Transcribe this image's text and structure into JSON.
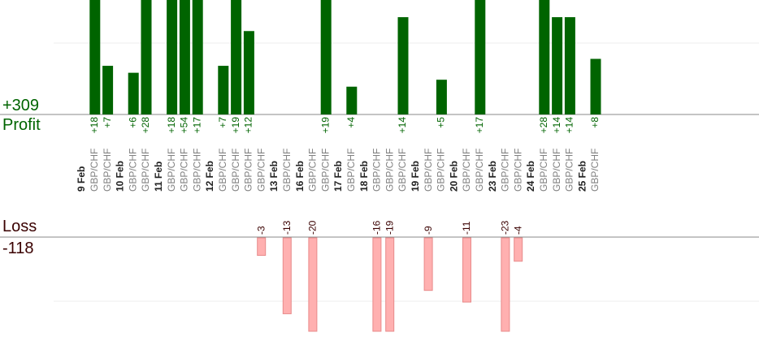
{
  "summary": {
    "profit_total": "+309",
    "profit_label": "Profit",
    "loss_label": "Loss",
    "loss_total": "-118"
  },
  "colors": {
    "profit_bar": "#006400",
    "loss_bar": "#ffb0b0",
    "loss_bar_border": "#e88a8a",
    "profit_text": "#006400",
    "loss_text": "#3a0000",
    "symbol_text": "#808080",
    "date_text": "#222222"
  },
  "chart_data": {
    "type": "bar",
    "symbol": "GBP/CHF",
    "groups": [
      {
        "date": "9 Feb",
        "trades": [
          18,
          7
        ]
      },
      {
        "date": "10 Feb",
        "trades": [
          6,
          28
        ]
      },
      {
        "date": "11 Feb",
        "trades": [
          18,
          54,
          17
        ]
      },
      {
        "date": "12 Feb",
        "trades": [
          7,
          19,
          12,
          -3
        ]
      },
      {
        "date": "13 Feb",
        "trades": [
          -13
        ]
      },
      {
        "date": "16 Feb",
        "trades": [
          -20,
          19
        ]
      },
      {
        "date": "17 Feb",
        "trades": [
          4
        ]
      },
      {
        "date": "18 Feb",
        "trades": [
          -16,
          -19,
          14
        ]
      },
      {
        "date": "19 Feb",
        "trades": [
          -9,
          5
        ]
      },
      {
        "date": "20 Feb",
        "trades": [
          -11,
          17
        ]
      },
      {
        "date": "23 Feb",
        "trades": [
          -23,
          -4
        ]
      },
      {
        "date": "24 Feb",
        "trades": [
          28,
          14,
          14
        ]
      },
      {
        "date": "25 Feb",
        "trades": [
          8
        ]
      }
    ],
    "profit_axis_max": 16,
    "loss_axis_max": 16
  }
}
